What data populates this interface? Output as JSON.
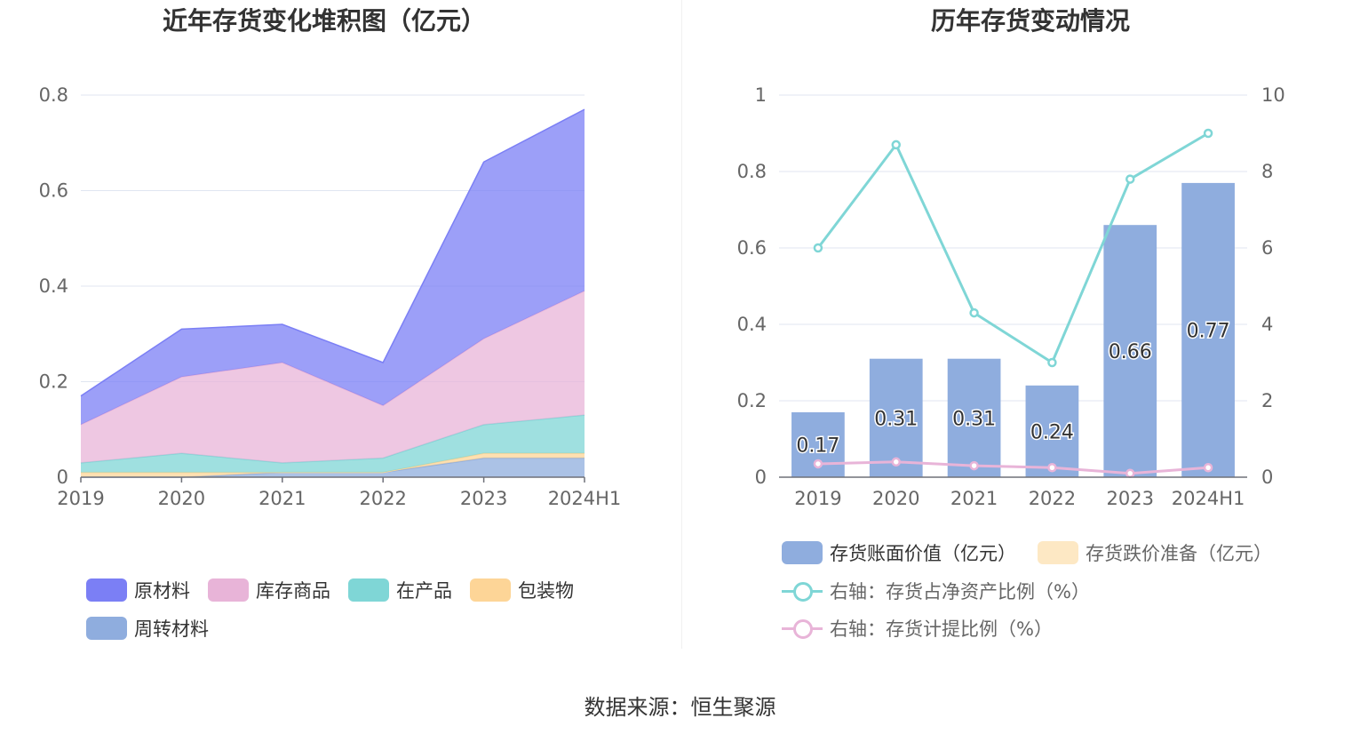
{
  "left_chart": {
    "title": "近年存货变化堆积图（亿元）",
    "legend": [
      {
        "label": "原材料",
        "color": "#7b7ff5"
      },
      {
        "label": "库存商品",
        "color": "#e8b4d8"
      },
      {
        "label": "在产品",
        "color": "#7fd6d6"
      },
      {
        "label": "包装物",
        "color": "#fdd597"
      },
      {
        "label": "周转材料",
        "color": "#8fadde"
      }
    ]
  },
  "right_chart": {
    "title": "历年存货变动情况",
    "legend": [
      {
        "label": "存货账面价值（亿元）",
        "color": "#8fadde",
        "kind": "box"
      },
      {
        "label": "存货跌价准备（亿元）",
        "color": "#fde8c4",
        "kind": "box"
      },
      {
        "label": "右轴：存货占净资产比例（%）",
        "color": "#7fd6d6",
        "kind": "line"
      },
      {
        "label": "右轴：存货计提比例（%）",
        "color": "#e8b4d8",
        "kind": "line"
      }
    ]
  },
  "source": "数据来源：恒生聚源",
  "chart_data": [
    {
      "type": "area",
      "stacked": true,
      "title": "近年存货变化堆积图（亿元）",
      "categories": [
        "2019",
        "2020",
        "2021",
        "2022",
        "2023",
        "2024H1"
      ],
      "ylim": [
        0,
        0.8
      ],
      "yticks": [
        "0",
        "0.2",
        "0.4",
        "0.6",
        "0.8"
      ],
      "grid": true,
      "legend_position": "bottom",
      "series": [
        {
          "name": "周转材料",
          "color": "#8fadde",
          "values": [
            0.0,
            0.0,
            0.01,
            0.01,
            0.04,
            0.04
          ]
        },
        {
          "name": "包装物",
          "color": "#fdd597",
          "values": [
            0.01,
            0.01,
            0.0,
            0.0,
            0.01,
            0.01
          ]
        },
        {
          "name": "在产品",
          "color": "#7fd6d6",
          "values": [
            0.02,
            0.04,
            0.02,
            0.03,
            0.06,
            0.08
          ]
        },
        {
          "name": "库存商品",
          "color": "#e8b4d8",
          "values": [
            0.08,
            0.16,
            0.21,
            0.11,
            0.18,
            0.26
          ]
        },
        {
          "name": "原材料",
          "color": "#7b7ff5",
          "values": [
            0.06,
            0.1,
            0.08,
            0.09,
            0.37,
            0.38
          ]
        }
      ]
    },
    {
      "type": "bar",
      "title": "历年存货变动情况",
      "categories": [
        "2019",
        "2020",
        "2021",
        "2022",
        "2023",
        "2024H1"
      ],
      "ylim": [
        0,
        1
      ],
      "yticks": [
        "0",
        "0.2",
        "0.4",
        "0.6",
        "0.8",
        "1"
      ],
      "y2lim": [
        0,
        10
      ],
      "y2ticks": [
        "0",
        "2",
        "4",
        "6",
        "8",
        "10"
      ],
      "grid": true,
      "legend_position": "bottom",
      "series": [
        {
          "name": "存货账面价值（亿元）",
          "type": "bar",
          "axis": "left",
          "color": "#8fadde",
          "values": [
            0.17,
            0.31,
            0.31,
            0.24,
            0.66,
            0.77
          ],
          "labels": [
            "0.17",
            "0.31",
            "0.31",
            "0.24",
            "0.66",
            "0.77"
          ]
        },
        {
          "name": "存货跌价准备（亿元）",
          "type": "bar",
          "axis": "left",
          "color": "#fde8c4",
          "values": [
            0,
            0,
            0,
            0,
            0,
            0
          ]
        },
        {
          "name": "右轴：存货占净资产比例（%）",
          "type": "line",
          "axis": "right",
          "color": "#7fd6d6",
          "values": [
            6.0,
            8.7,
            4.3,
            3.0,
            7.8,
            9.0
          ]
        },
        {
          "name": "右轴：存货计提比例（%）",
          "type": "line",
          "axis": "right",
          "color": "#e8b4d8",
          "values": [
            0.35,
            0.4,
            0.3,
            0.25,
            0.1,
            0.25
          ]
        }
      ]
    }
  ]
}
